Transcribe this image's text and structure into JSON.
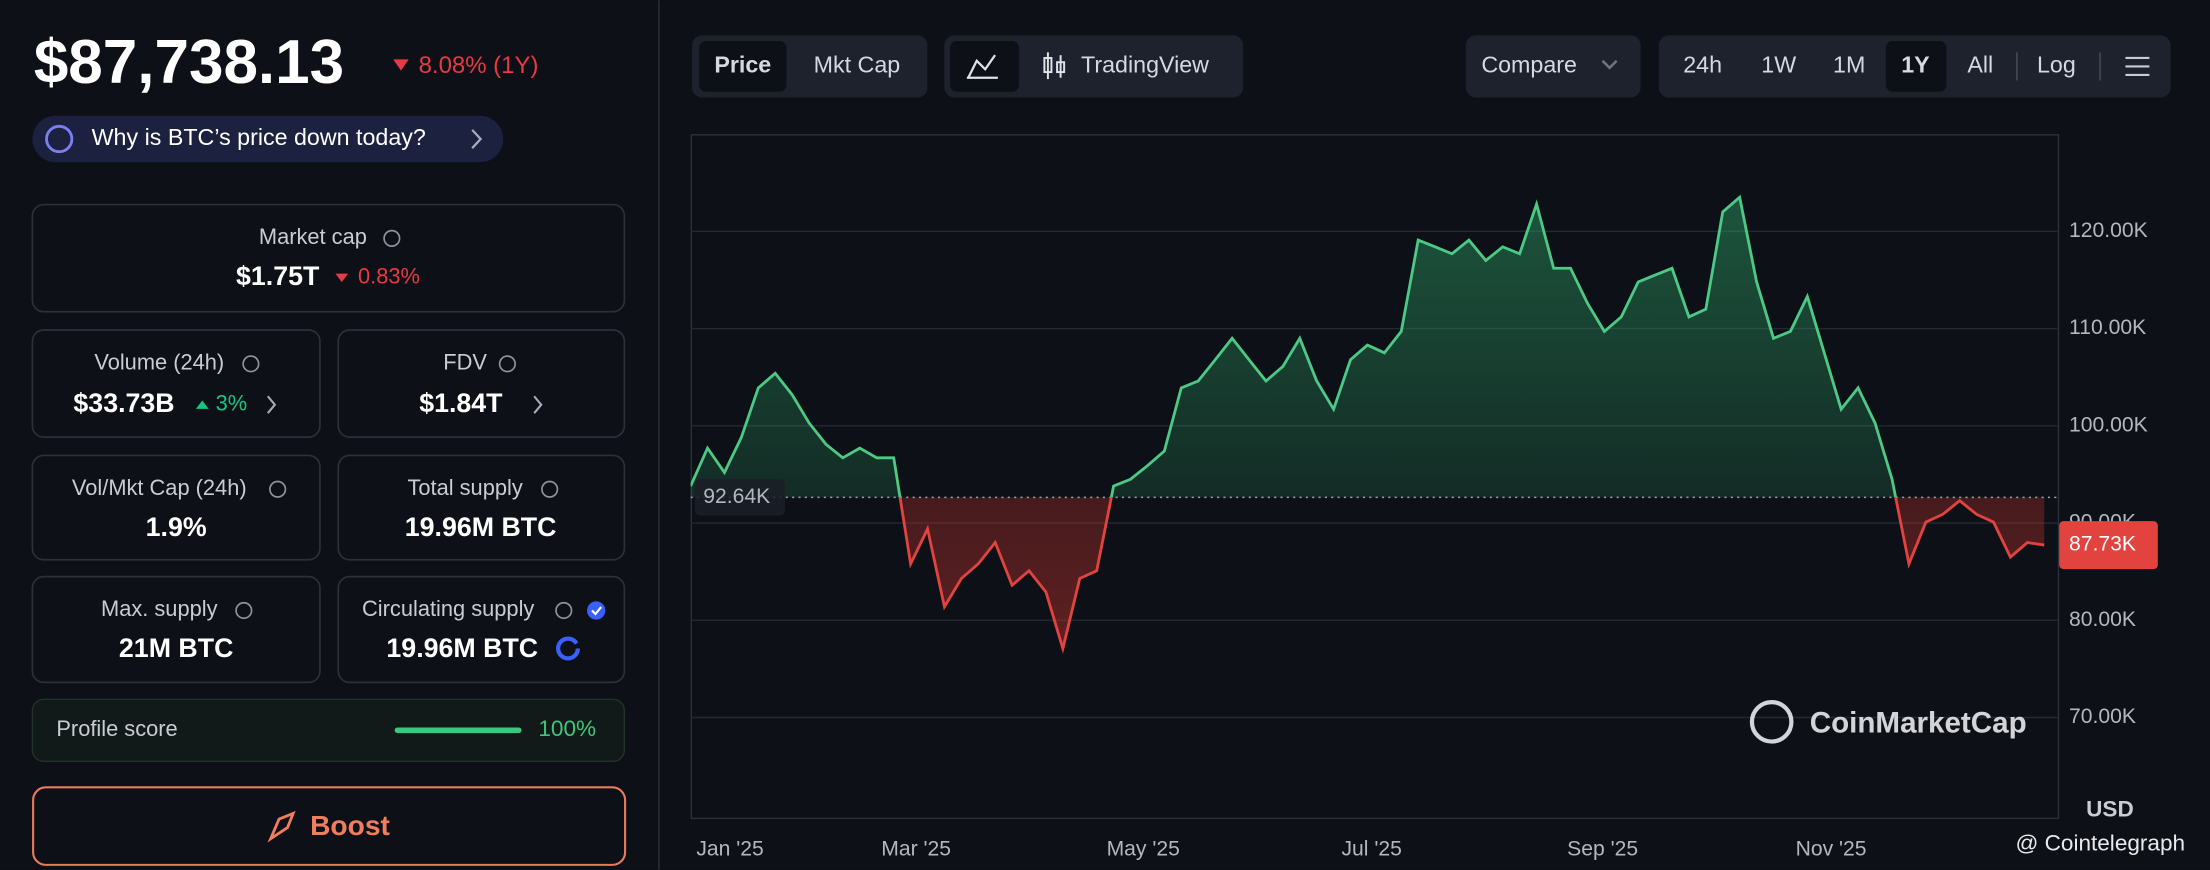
{
  "header": {
    "price": "$87,738.13",
    "change": "8.08% (1Y)",
    "why": "Why is BTC’s price down today?"
  },
  "stats": [
    {
      "label": "Market cap",
      "value": "$1.75T",
      "change": "0.83%"
    },
    {
      "label": "Volume (24h)",
      "value": "$33.73B",
      "change": "3%"
    },
    {
      "label": "FDV",
      "value": "$1.84T"
    },
    {
      "label": "Vol/Mkt Cap (24h)",
      "value": "1.9%"
    },
    {
      "label": "Total supply",
      "value": "19.96M BTC"
    },
    {
      "label": "Max. supply",
      "value": "21M BTC"
    },
    {
      "label": "Circulating supply",
      "value": "19.96M BTC"
    }
  ],
  "profile": {
    "label": "Profile score",
    "value": "100%"
  },
  "boost": "Boost",
  "toolbar": {
    "tabs": [
      "Price",
      "Mkt Cap"
    ],
    "tradingview": "TradingView",
    "compare": "Compare",
    "ranges": [
      "24h",
      "1W",
      "1M",
      "1Y",
      "All",
      "Log"
    ]
  },
  "chart_data": {
    "type": "line",
    "values": [
      93800,
      97700,
      95200,
      98800,
      103900,
      105400,
      103200,
      100300,
      98100,
      96700,
      97700,
      96700,
      96700,
      85800,
      89400,
      81400,
      84300,
      85800,
      88000,
      83600,
      85100,
      82900,
      77100,
      84300,
      85100,
      93800,
      94500,
      95900,
      97400,
      103900,
      104600,
      106800,
      109000,
      106800,
      104600,
      106100,
      109000,
      104600,
      101700,
      106800,
      108300,
      107500,
      109700,
      119100,
      118400,
      117700,
      119100,
      117000,
      118400,
      117700,
      122800,
      116200,
      116200,
      112600,
      109700,
      111200,
      114800,
      115500,
      116200,
      111200,
      112000,
      122000,
      123500,
      114800,
      109000,
      109700,
      113300,
      107500,
      101700,
      103900,
      100300,
      94500,
      85800,
      90100,
      90900,
      92300,
      90900,
      90100,
      86500,
      88000,
      87730
    ],
    "value_labels": [
      null,
      null,
      null,
      null,
      null,
      null,
      null,
      null,
      null,
      null,
      null,
      null,
      null,
      null,
      null,
      null,
      null,
      null,
      null,
      null,
      null,
      null,
      null,
      null,
      null,
      null,
      null,
      null,
      null,
      null,
      null,
      null,
      null,
      null,
      null,
      null,
      null,
      null,
      null,
      null,
      null,
      null,
      null,
      null,
      null,
      null,
      null,
      null,
      null,
      null,
      null,
      null,
      null,
      null,
      null,
      null,
      null,
      null,
      null,
      null,
      null,
      null,
      null,
      null,
      null,
      null,
      null,
      null,
      null,
      null,
      null,
      null,
      null,
      null,
      null,
      null,
      null,
      null,
      null,
      null,
      "87.73K"
    ],
    "baseline": {
      "value": 92640,
      "label": "92.64K"
    },
    "colors": {
      "up": "#4cc985",
      "down": "#e2433f"
    },
    "xlim": [
      0,
      80.8
    ],
    "xticks": [
      {
        "value": 2.33,
        "label": "Jan '25"
      },
      {
        "value": 13.33,
        "label": "Mar '25"
      },
      {
        "value": 26.75,
        "label": "May '25"
      },
      {
        "value": 40.25,
        "label": "Jul '25"
      },
      {
        "value": 53.9,
        "label": "Sep '25"
      },
      {
        "value": 67.4,
        "label": "Nov '25"
      }
    ],
    "ylim": [
      59700,
      130000
    ],
    "yticks": [
      {
        "value": 70000,
        "label": "70.00K"
      },
      {
        "value": 80000,
        "label": "80.00K"
      },
      {
        "value": 90000,
        "label": "90.00K"
      },
      {
        "value": 100000,
        "label": "100.00K"
      },
      {
        "value": 110000,
        "label": "110.00K"
      },
      {
        "value": 120000,
        "label": "120.00K"
      }
    ],
    "grid": true,
    "y_label": "USD",
    "watermark": "CoinMarketCap",
    "credit": "@ Cointelegraph"
  }
}
